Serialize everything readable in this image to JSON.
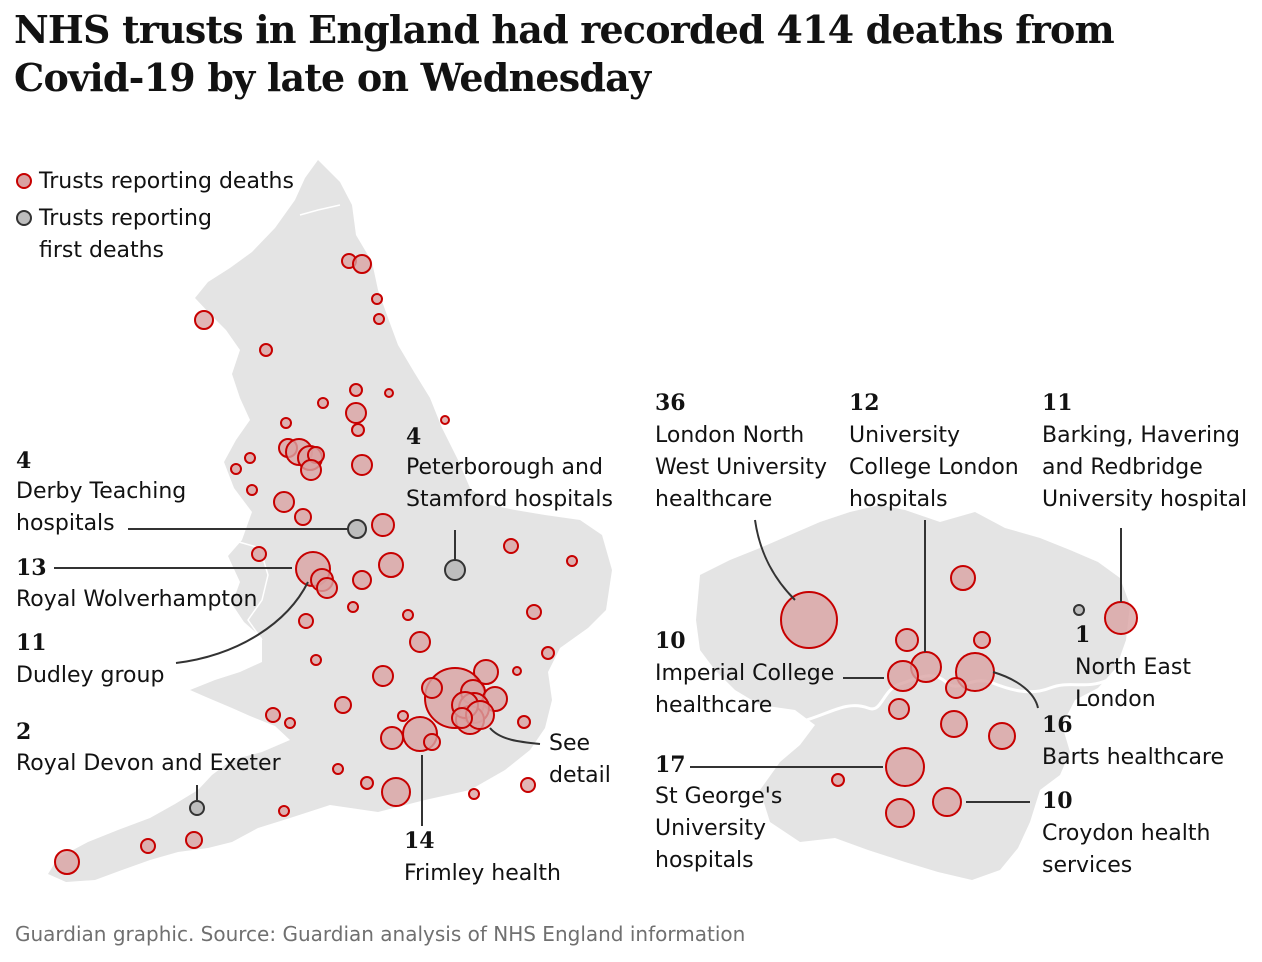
{
  "title": "NHS trusts in England had recorded 414 deaths from Covid-19 by late on Wednesday",
  "source": "Guardian graphic. Source: Guardian analysis of NHS England information",
  "colors": {
    "deaths_fill": "#d9a2a2",
    "deaths_stroke": "#c70000",
    "first_fill": "#bdbdbd",
    "first_stroke": "#333333",
    "land": "#e4e4e4"
  },
  "legend": {
    "deaths": "Trusts reporting deaths",
    "first_line1": "Trusts reporting",
    "first_line2": "first deaths"
  },
  "callouts": {
    "derby": {
      "value": "4",
      "line1": "Derby Teaching",
      "line2": "hospitals"
    },
    "peterborough": {
      "value": "4",
      "line1": "Peterborough and",
      "line2": "Stamford hospitals"
    },
    "wolverhampton": {
      "value": "13",
      "line1": "Royal Wolverhampton"
    },
    "dudley": {
      "value": "11",
      "line1": "Dudley group"
    },
    "devon": {
      "value": "2",
      "line1": "Royal Devon and Exeter"
    },
    "frimley": {
      "value": "14",
      "line1": "Frimley health"
    },
    "see_detail": {
      "line1": "See",
      "line2": "detail"
    },
    "london_nw": {
      "value": "36",
      "line1": "London North",
      "line2": "West University",
      "line3": "healthcare"
    },
    "uclh": {
      "value": "12",
      "line1": "University",
      "line2": "College London",
      "line3": "hospitals"
    },
    "barking": {
      "value": "11",
      "line1": "Barking, Havering",
      "line2": "and Redbridge",
      "line3": "University hospital"
    },
    "imperial": {
      "value": "10",
      "line1": "Imperial College",
      "line2": "healthcare"
    },
    "ne_london": {
      "value": "1",
      "line1": "North East",
      "line2": "London"
    },
    "barts": {
      "value": "16",
      "line1": "Barts healthcare"
    },
    "st_georges": {
      "value": "17",
      "line1": "St George's",
      "line2": "University",
      "line3": "hospitals"
    },
    "croydon": {
      "value": "10",
      "line1": "Croydon health",
      "line2": "services"
    }
  }
}
